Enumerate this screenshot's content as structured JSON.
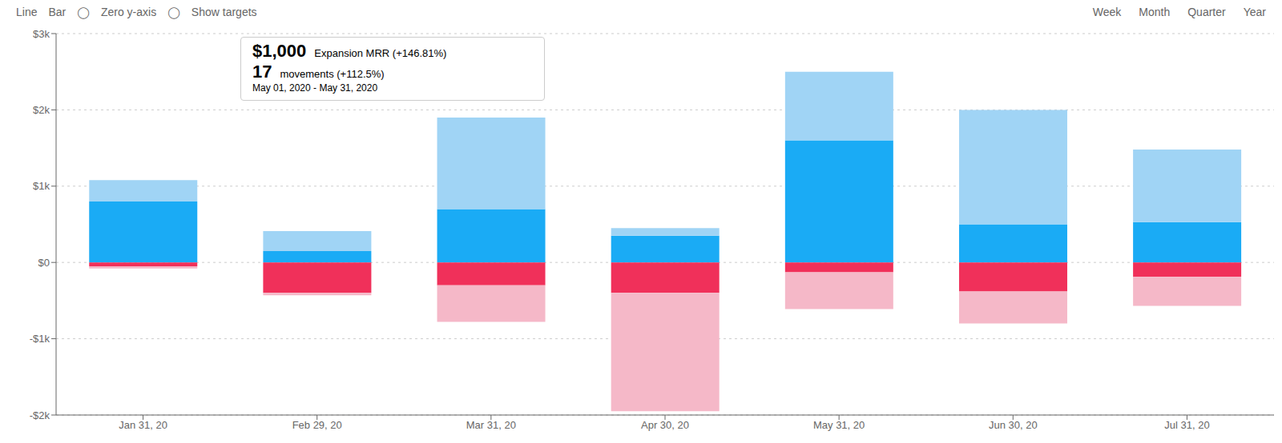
{
  "chart_data": {
    "type": "bar",
    "stacked": true,
    "grid": true,
    "categories": [
      "Jan 31, 20",
      "Feb 29, 20",
      "Mar 31, 20",
      "Apr 30, 20",
      "May 31, 20",
      "Jun 30, 20",
      "Jul 31, 20"
    ],
    "series": [
      {
        "color": "#1aabf5",
        "values": [
          800,
          150,
          700,
          350,
          1600,
          500,
          530
        ]
      },
      {
        "color": "#a0d4f5",
        "values": [
          280,
          260,
          1200,
          100,
          900,
          1500,
          950
        ]
      },
      {
        "color": "#f0305a",
        "values": [
          -50,
          -400,
          -300,
          -400,
          -130,
          -380,
          -190
        ]
      },
      {
        "color": "#f5b8c8",
        "values": [
          -30,
          -30,
          -480,
          -1550,
          -480,
          -420,
          -380
        ]
      }
    ],
    "ylim": [
      -2000,
      3000
    ],
    "yticks": [
      {
        "value": -2000,
        "label": "-$2k"
      },
      {
        "value": -1000,
        "label": "-$1k"
      },
      {
        "value": 0,
        "label": "$0"
      },
      {
        "value": 1000,
        "label": "$1k"
      },
      {
        "value": 2000,
        "label": "$2k"
      },
      {
        "value": 3000,
        "label": "$3k"
      }
    ],
    "annotations": [
      "Line",
      "Bar",
      "◯",
      "Zero y-axis",
      "◯",
      "Show targets",
      "Week",
      "Month",
      "Quarter",
      "Year",
      "$1,000",
      "Expansion MRR (+146.81%)",
      "17",
      "movements (+112.5%)",
      "May 01, 2020 - May 31, 2020"
    ]
  }
}
